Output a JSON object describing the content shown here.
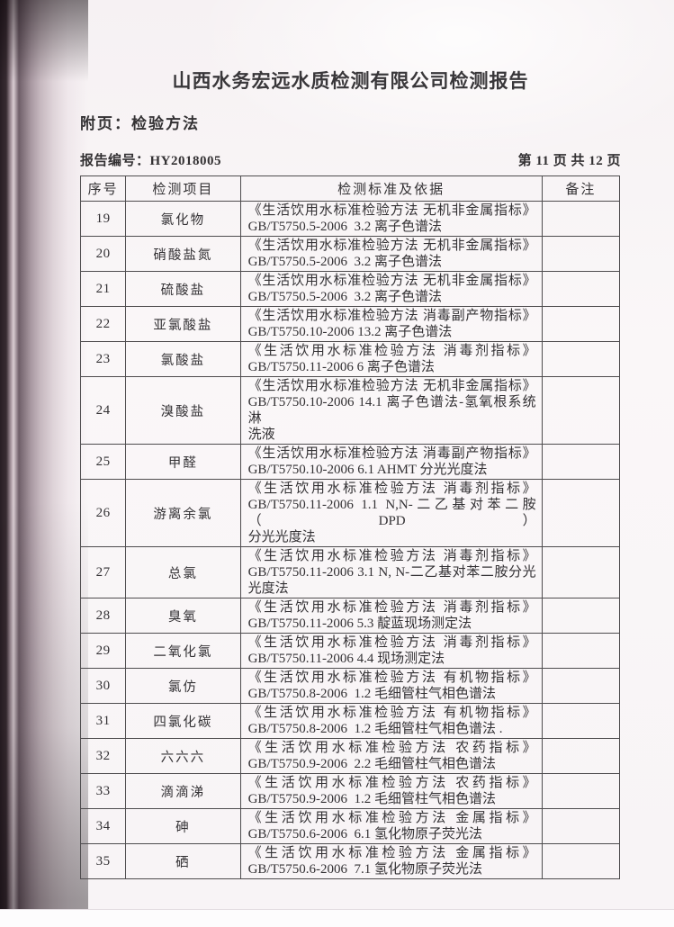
{
  "colors": {
    "paper": "#f8f4f6",
    "ink": "#2e2c2d",
    "table_border": "#4e4c4e",
    "scan_edge_dark": "#281e24"
  },
  "header": {
    "title": "山西水务宏远水质检测有限公司检测报告",
    "subtitle": "附页：检验方法",
    "report_no": "报告编号：HY2018005",
    "page_indicator": "第 11 页 共 12 页"
  },
  "table": {
    "headers": [
      "序号",
      "检测项目",
      "检测标准及依据",
      "备注"
    ],
    "rows": [
      {
        "no": "19",
        "item": "氯化物",
        "lines": [
          "《生活饮用水标准检验方法 无机非金属指标》",
          "GB/T5750.5-2006  3.2 离子色谱法"
        ],
        "remark": ""
      },
      {
        "no": "20",
        "item": "硝酸盐氮",
        "lines": [
          "《生活饮用水标准检验方法 无机非金属指标》",
          "GB/T5750.5-2006  3.2 离子色谱法"
        ],
        "remark": ""
      },
      {
        "no": "21",
        "item": "硫酸盐",
        "lines": [
          "《生活饮用水标准检验方法 无机非金属指标》",
          "GB/T5750.5-2006  3.2 离子色谱法"
        ],
        "remark": ""
      },
      {
        "no": "22",
        "item": "亚氯酸盐",
        "lines": [
          "《生活饮用水标准检验方法 消毒副产物指标》",
          "GB/T5750.10-2006 13.2 离子色谱法"
        ],
        "remark": ""
      },
      {
        "no": "23",
        "item": "氯酸盐",
        "lines": [
          "《生活饮用水标准检验方法 消毒剂指标》",
          "GB/T5750.11-2006 6 离子色谱法"
        ],
        "remark": ""
      },
      {
        "no": "24",
        "item": "溴酸盐",
        "lines": [
          "《生活饮用水标准检验方法 无机非金属指标》",
          "GB/T5750.10-2006 14.1 离子色谱法-氢氧根系统淋",
          "洗液"
        ],
        "remark": ""
      },
      {
        "no": "25",
        "item": "甲醛",
        "lines": [
          "《生活饮用水标准检验方法 消毒副产物指标》",
          "GB/T5750.10-2006 6.1 AHMT 分光光度法"
        ],
        "remark": ""
      },
      {
        "no": "26",
        "item": "游离余氯",
        "lines": [
          "《生活饮用水标准检验方法 消毒剂指标》",
          "GB/T5750.11-2006 1.1 N,N-二乙基对苯二胺（DPD）",
          "分光光度法"
        ],
        "remark": ""
      },
      {
        "no": "27",
        "item": "总氯",
        "lines": [
          "《生活饮用水标准检验方法 消毒剂指标》",
          "GB/T5750.11-2006 3.1 N, N-二乙基对苯二胺分光",
          "光度法"
        ],
        "remark": ""
      },
      {
        "no": "28",
        "item": "臭氧",
        "lines": [
          "《生活饮用水标准检验方法 消毒剂指标》",
          "GB/T5750.11-2006 5.3 靛蓝现场测定法"
        ],
        "remark": ""
      },
      {
        "no": "29",
        "item": "二氧化氯",
        "lines": [
          "《生活饮用水标准检验方法 消毒剂指标》",
          "GB/T5750.11-2006 4.4 现场测定法"
        ],
        "remark": ""
      },
      {
        "no": "30",
        "item": "氯仿",
        "lines": [
          "《生活饮用水标准检验方法 有机物指标》",
          "GB/T5750.8-2006  1.2 毛细管柱气相色谱法"
        ],
        "remark": ""
      },
      {
        "no": "31",
        "item": "四氯化碳",
        "lines": [
          "《生活饮用水标准检验方法 有机物指标》",
          "GB/T5750.8-2006  1.2 毛细管柱气相色谱法 ."
        ],
        "remark": ""
      },
      {
        "no": "32",
        "item": "六六六",
        "lines": [
          "《生活饮用水标准检验方法 农药指标》",
          "GB/T5750.9-2006  2.2 毛细管柱气相色谱法"
        ],
        "remark": ""
      },
      {
        "no": "33",
        "item": "滴滴涕",
        "lines": [
          "《生活饮用水标准检验方法 农药指标》",
          "GB/T5750.9-2006  1.2 毛细管柱气相色谱法"
        ],
        "remark": ""
      },
      {
        "no": "34",
        "item": "砷",
        "lines": [
          "《生活饮用水标准检验方法 金属指标》",
          "GB/T5750.6-2006  6.1 氢化物原子荧光法"
        ],
        "remark": ""
      },
      {
        "no": "35",
        "item": "硒",
        "lines": [
          "《生活饮用水标准检验方法 金属指标》",
          "GB/T5750.6-2006  7.1 氢化物原子荧光法"
        ],
        "remark": ""
      }
    ]
  }
}
